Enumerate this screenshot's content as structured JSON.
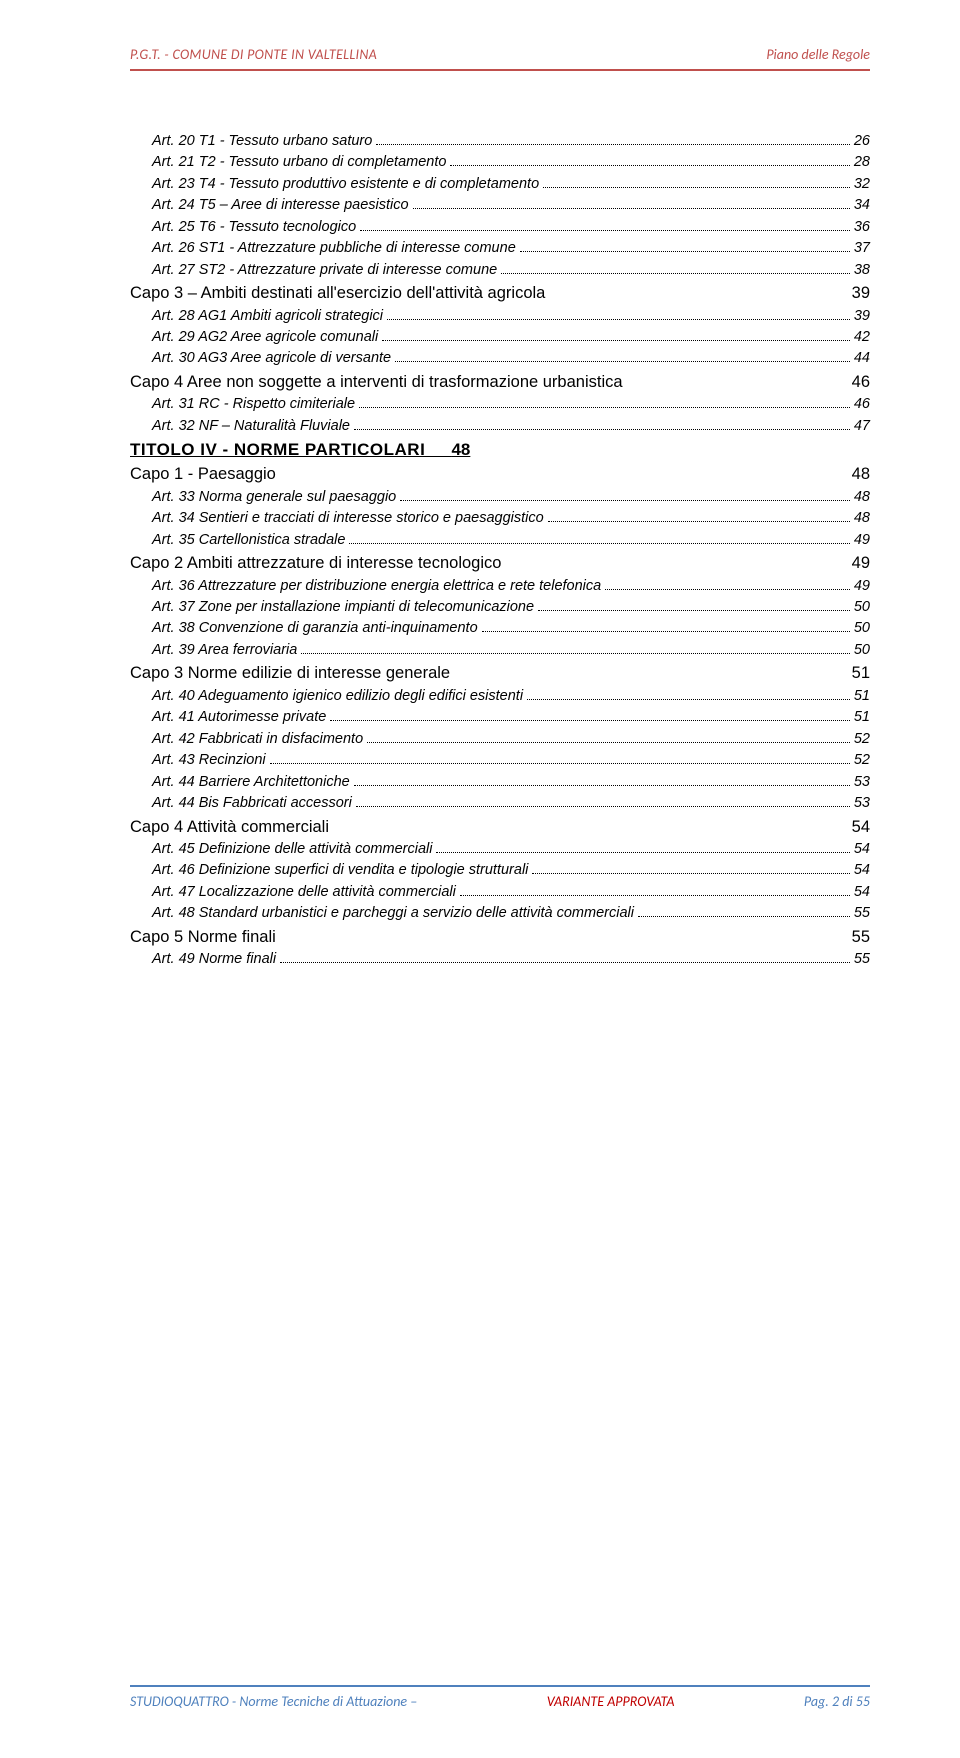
{
  "colors": {
    "header_red": "#c0504d",
    "footer_blue": "#4f81bd",
    "variant_red": "#c00000"
  },
  "header": {
    "left": "P.G.T. - COMUNE DI PONTE IN VALTELLINA",
    "right": "Piano delle Regole"
  },
  "footer": {
    "left": "STUDIOQUATTRO - Norme Tecniche di Attuazione –",
    "mid": "VARIANTE APPROVATA",
    "right": "Pag. 2 di 55"
  },
  "toc": [
    {
      "type": "art",
      "label": "Art. 20  T1 -  Tessuto urbano saturo",
      "page": "26"
    },
    {
      "type": "art",
      "label": "Art. 21  T2 -  Tessuto urbano di completamento",
      "page": "28"
    },
    {
      "type": "art",
      "label": "Art. 23  T4 - Tessuto produttivo esistente e di completamento",
      "page": "32"
    },
    {
      "type": "art",
      "label": "Art. 24  T5 – Aree di interesse paesistico",
      "page": "34"
    },
    {
      "type": "art",
      "label": "Art. 25  T6 - Tessuto tecnologico",
      "page": "36"
    },
    {
      "type": "art",
      "label": "Art. 26  ST1 - Attrezzature pubbliche di interesse comune",
      "page": "37"
    },
    {
      "type": "art",
      "label": "Art. 27  ST2 -  Attrezzature  private  di interesse comune",
      "page": "38"
    },
    {
      "type": "capo",
      "label": "Capo 3 – Ambiti destinati all'esercizio dell'attività agricola",
      "page": "39"
    },
    {
      "type": "art",
      "label": "Art. 28  AG1  Ambiti agricoli strategici",
      "page": "39"
    },
    {
      "type": "art",
      "label": "Art. 29  AG2  Aree agricole comunali",
      "page": "42"
    },
    {
      "type": "art",
      "label": "Art. 30  AG3  Aree agricole di versante",
      "page": "44"
    },
    {
      "type": "capo",
      "label": "Capo 4  Aree non soggette a interventi di trasformazione urbanistica",
      "page": "46"
    },
    {
      "type": "art",
      "label": "Art. 31  RC - Rispetto cimiteriale",
      "page": "46"
    },
    {
      "type": "art",
      "label": "Art. 32  NF – Naturalità Fluviale",
      "page": "47"
    },
    {
      "type": "title",
      "label": "TITOLO IV   -   NORME PARTICOLARI",
      "page": "48"
    },
    {
      "type": "capo",
      "label": "Capo 1 - Paesaggio",
      "page": "48"
    },
    {
      "type": "art",
      "label": "Art. 33  Norma generale sul paesaggio",
      "page": "48"
    },
    {
      "type": "art",
      "label": "Art. 34  Sentieri e tracciati di interesse storico e paesaggistico",
      "page": "48"
    },
    {
      "type": "art",
      "label": "Art. 35  Cartellonistica stradale",
      "page": "49"
    },
    {
      "type": "capo",
      "label": "Capo 2  Ambiti attrezzature di interesse tecnologico",
      "page": "49"
    },
    {
      "type": "art",
      "label": "Art. 36  Attrezzature per distribuzione energia elettrica e rete telefonica",
      "page": "49"
    },
    {
      "type": "art",
      "label": "Art. 37  Zone per installazione impianti di telecomunicazione",
      "page": "50"
    },
    {
      "type": "art",
      "label": "Art. 38  Convenzione di garanzia anti-inquinamento",
      "page": "50"
    },
    {
      "type": "art",
      "label": "Art. 39   Area ferroviaria",
      "page": "50"
    },
    {
      "type": "capo",
      "label": "Capo 3  Norme edilizie di interesse generale",
      "page": "51"
    },
    {
      "type": "art",
      "label": "Art. 40  Adeguamento igienico edilizio degli edifici esistenti",
      "page": "51"
    },
    {
      "type": "art",
      "label": "Art. 41  Autorimesse private",
      "page": "51"
    },
    {
      "type": "art",
      "label": "Art. 42  Fabbricati in disfacimento",
      "page": "52"
    },
    {
      "type": "art",
      "label": "Art. 43  Recinzioni",
      "page": "52"
    },
    {
      "type": "art",
      "label": "Art. 44  Barriere Architettoniche",
      "page": "53"
    },
    {
      "type": "art",
      "label": "Art. 44 Bis  Fabbricati accessori",
      "page": "53"
    },
    {
      "type": "capo",
      "label": "Capo 4  Attività commerciali",
      "page": "54"
    },
    {
      "type": "art",
      "label": "Art. 45  Definizione delle attività commerciali",
      "page": "54"
    },
    {
      "type": "art",
      "label": "Art. 46  Definizione superfici di vendita e tipologie strutturali",
      "page": "54"
    },
    {
      "type": "art",
      "label": "Art. 47  Localizzazione delle attività commerciali",
      "page": "54"
    },
    {
      "type": "art",
      "label": "Art. 48  Standard urbanistici e parcheggi a servizio delle attività commerciali",
      "page": "55"
    },
    {
      "type": "capo",
      "label": "Capo 5  Norme finali",
      "page": "55"
    },
    {
      "type": "art",
      "label": "Art. 49   Norme finali",
      "page": "55"
    }
  ]
}
